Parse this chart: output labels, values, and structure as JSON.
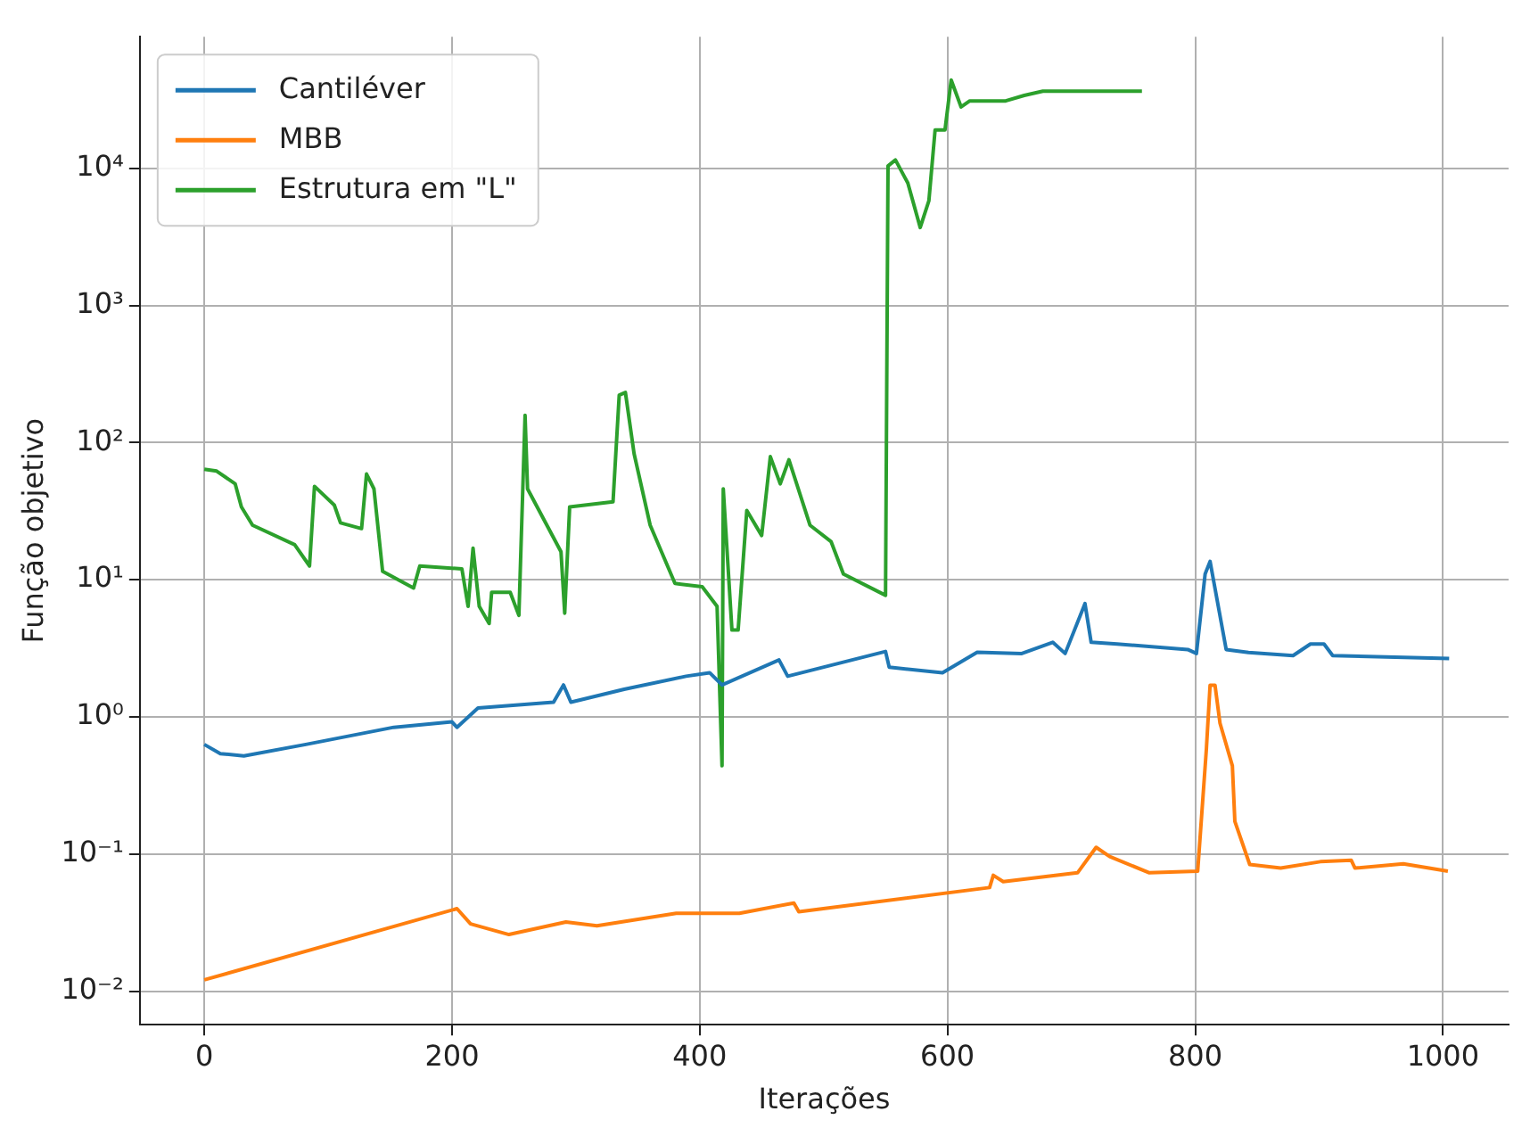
{
  "chart_data": {
    "type": "line",
    "xlabel": "Iterações",
    "ylabel": "Função objetivo",
    "log": "y",
    "grid": true,
    "legend": "top left",
    "marker": "none",
    "line_style": "solid",
    "xlim": [
      -52,
      1053
    ],
    "xticks": [
      0,
      200,
      400,
      600,
      800,
      1000
    ],
    "ylim": [
      0.0057,
      91000
    ],
    "yticks": [
      {
        "value": 0.01,
        "label": "10⁻²"
      },
      {
        "value": 0.1,
        "label": "10⁻¹"
      },
      {
        "value": 1,
        "label": "10⁰"
      },
      {
        "value": 10,
        "label": "10¹"
      },
      {
        "value": 100,
        "label": "10²"
      },
      {
        "value": 1000,
        "label": "10³"
      },
      {
        "value": 10000,
        "label": "10⁴"
      }
    ],
    "series": [
      {
        "name": "Cantiléver",
        "color": "#1f77b4",
        "x": [
          0,
          13,
          32,
          82,
          153,
          200,
          204,
          221,
          282,
          290,
          296,
          339,
          389,
          408,
          418,
          464,
          471,
          550,
          553,
          596,
          624,
          660,
          685,
          695,
          711,
          716,
          737,
          794,
          801,
          808,
          812,
          825,
          843,
          879,
          893,
          904,
          911,
          1005
        ],
        "values": [
          0.63,
          0.54,
          0.52,
          0.63,
          0.84,
          0.92,
          0.84,
          1.16,
          1.28,
          1.71,
          1.28,
          1.59,
          1.98,
          2.1,
          1.71,
          2.6,
          1.98,
          3.0,
          2.3,
          2.1,
          2.96,
          2.9,
          3.5,
          2.9,
          6.7,
          3.5,
          3.4,
          3.1,
          2.9,
          11,
          13.6,
          3.1,
          2.95,
          2.8,
          3.4,
          3.4,
          2.8,
          2.67
        ]
      },
      {
        "name": "MBB",
        "color": "#ff7f0e",
        "x": [
          0,
          204,
          215,
          246,
          292,
          317,
          381,
          432,
          476,
          480,
          634,
          637,
          645,
          705,
          720,
          731,
          763,
          802,
          809,
          812,
          816,
          820,
          830,
          832,
          844,
          869,
          901,
          926,
          929,
          968,
          1004
        ],
        "values": [
          0.0121,
          0.04,
          0.031,
          0.0259,
          0.032,
          0.03,
          0.037,
          0.037,
          0.044,
          0.038,
          0.057,
          0.07,
          0.063,
          0.073,
          0.112,
          0.096,
          0.073,
          0.075,
          0.58,
          1.7,
          1.7,
          0.9,
          0.44,
          0.173,
          0.084,
          0.079,
          0.088,
          0.09,
          0.079,
          0.085,
          0.075
        ]
      },
      {
        "name": "Estrutura em \"L\"",
        "color": "#2ca02c",
        "x": [
          0,
          10,
          25,
          30,
          39,
          73,
          85,
          89,
          105,
          110,
          127,
          131,
          137,
          144,
          169,
          174,
          208,
          213,
          217,
          222,
          230,
          232,
          247,
          254,
          259,
          261,
          288,
          291,
          295,
          330,
          335,
          340,
          347,
          360,
          380,
          402,
          414,
          418,
          419,
          426,
          431,
          438,
          450,
          457,
          465,
          472,
          489,
          506,
          516,
          550,
          552,
          558,
          568,
          578,
          585,
          590,
          598,
          603,
          611,
          618,
          630,
          647,
          662,
          677,
          757
        ],
        "values": [
          64,
          62,
          50,
          34,
          25,
          18,
          12.6,
          48,
          35,
          26,
          23.6,
          59,
          46,
          11.5,
          8.7,
          12.6,
          12,
          6.4,
          17,
          6.4,
          4.8,
          8.1,
          8.1,
          5.5,
          158,
          46,
          16,
          5.7,
          34,
          37,
          222,
          232,
          83,
          25,
          9.4,
          8.9,
          6.4,
          0.44,
          46,
          4.3,
          4.3,
          32,
          21,
          79,
          50,
          75,
          25,
          19,
          11,
          7.7,
          10400,
          11500,
          7800,
          3700,
          5800,
          19000,
          19000,
          44000,
          28000,
          31000,
          31000,
          31000,
          34000,
          36500,
          36500
        ]
      }
    ]
  }
}
